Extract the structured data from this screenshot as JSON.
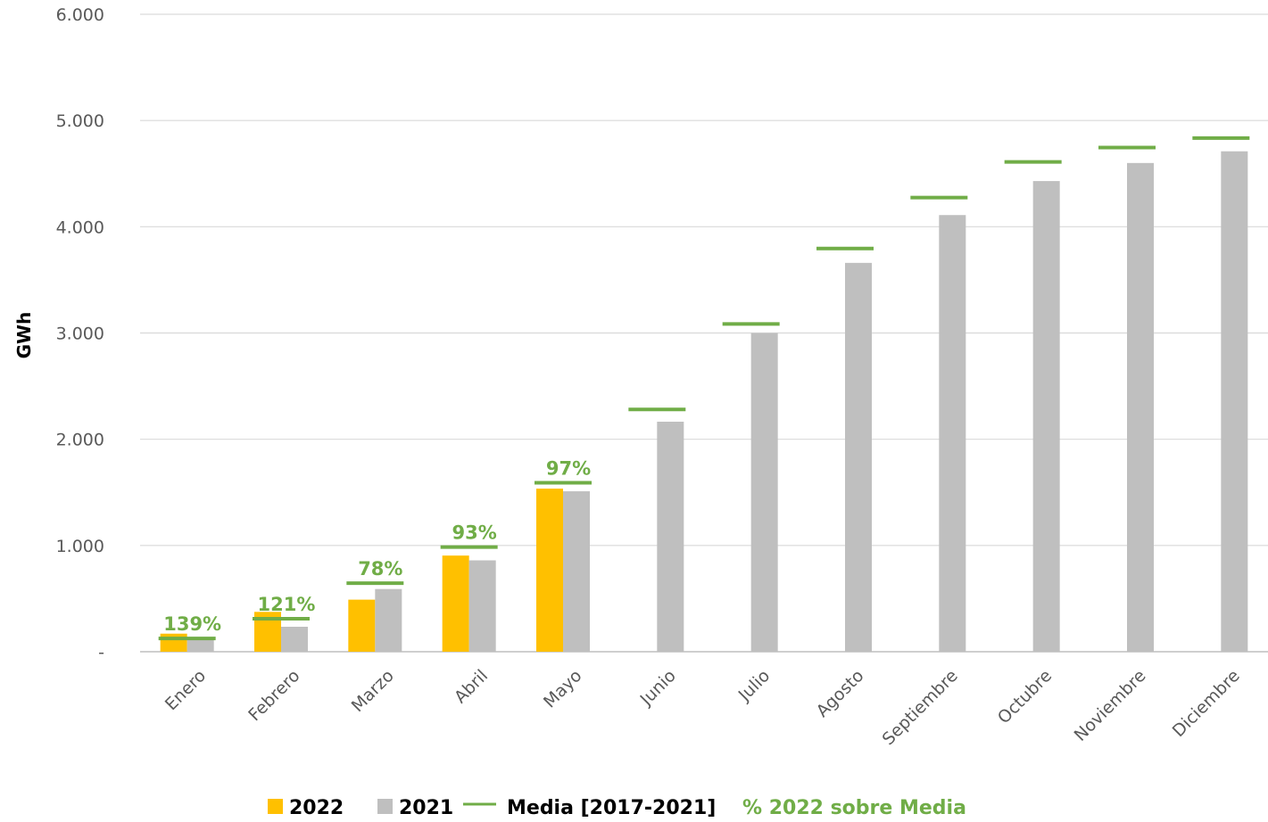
{
  "chart_data": {
    "type": "bar",
    "ylabel": "GWh",
    "ylim": [
      0,
      6000
    ],
    "y_ticks": [
      "-",
      "1.000",
      "2.000",
      "3.000",
      "4.000",
      "5.000",
      "6.000"
    ],
    "grid": true,
    "categories": [
      "Enero",
      "Febrero",
      "Marzo",
      "Abril",
      "Mayo",
      "Junio",
      "Julio",
      "Agosto",
      "Septiembre",
      "Octubre",
      "Noviembre",
      "Diciembre"
    ],
    "series": [
      {
        "name": "2022",
        "kind": "bar",
        "color": "#FFC000",
        "values": [
          170,
          375,
          490,
          905,
          1535,
          null,
          null,
          null,
          null,
          null,
          null,
          null
        ]
      },
      {
        "name": "2021",
        "kind": "bar",
        "color": "#BFBFBF",
        "values": [
          120,
          235,
          590,
          860,
          1510,
          2165,
          3000,
          3660,
          4110,
          4430,
          4600,
          4710
        ]
      },
      {
        "name": "Media [2017-2021]",
        "kind": "marker-line",
        "color": "#70AD47",
        "values": [
          125,
          310,
          645,
          985,
          1590,
          2280,
          3085,
          3795,
          4275,
          4610,
          4745,
          4835
        ]
      }
    ],
    "pct_labels": {
      "name": "% 2022 sobre Media",
      "color": "#70AD47",
      "values": [
        "139%",
        "121%",
        "78%",
        "93%",
        "97%",
        null,
        null,
        null,
        null,
        null,
        null,
        null
      ]
    },
    "legend": {
      "position": "bottom",
      "items": [
        "2022",
        "2021",
        "Media [2017-2021]",
        "% 2022 sobre Media"
      ]
    }
  }
}
